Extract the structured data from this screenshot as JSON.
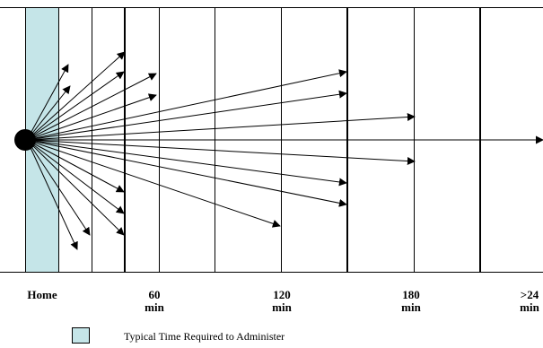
{
  "colors": {
    "shaded_column": "#c5e5e8",
    "ink": "#000000"
  },
  "axis": {
    "home": "Home",
    "ticks": [
      {
        "value": "60",
        "unit": "min"
      },
      {
        "value": "120",
        "unit": "min"
      },
      {
        "value": "180",
        "unit": "min"
      },
      {
        "value": ">24",
        "unit": "min"
      }
    ]
  },
  "legend": {
    "label": "Typical Time Required to Administer"
  }
}
